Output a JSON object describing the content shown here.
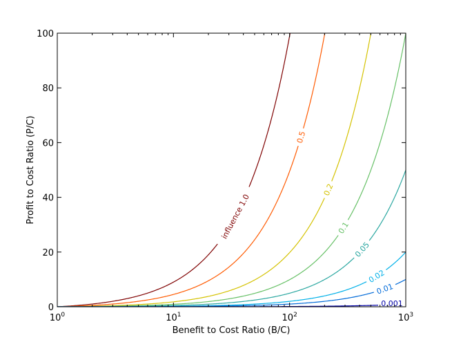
{
  "chart_data": {
    "type": "line",
    "title": "",
    "xlabel": "Benefit to Cost Ratio (B/C)",
    "ylabel": "Profit to Cost Ratio (P/C)",
    "xscale": "log",
    "xlim": [
      1,
      1000
    ],
    "ylim": [
      0,
      100
    ],
    "grid": false,
    "legend": "none (inline contour labels)",
    "x_ticks": [
      {
        "value": 1,
        "base": "10",
        "exp": "0"
      },
      {
        "value": 10,
        "base": "10",
        "exp": "1"
      },
      {
        "value": 100,
        "base": "10",
        "exp": "2"
      },
      {
        "value": 1000,
        "base": "10",
        "exp": "3"
      }
    ],
    "y_ticks": [
      "0",
      "20",
      "40",
      "60",
      "80",
      "100"
    ],
    "model": "P/C = influence * (B/C - 1)",
    "series": [
      {
        "name": "influence 1.0",
        "label": "influence 1.0",
        "influence": 1.0,
        "color": "#7f0000",
        "label_x": 34,
        "x": [
          1,
          10,
          30,
          50,
          100
        ],
        "values": [
          0,
          9,
          29,
          49,
          99
        ]
      },
      {
        "name": "0.5",
        "label": "0.5",
        "influence": 0.5,
        "color": "#ff5a00",
        "label_x": 125,
        "x": [
          1,
          10,
          50,
          100,
          200
        ],
        "values": [
          0,
          4.5,
          24.5,
          49.5,
          99.5
        ]
      },
      {
        "name": "0.2",
        "label": "0.2",
        "influence": 0.2,
        "color": "#d4c200",
        "label_x": 215,
        "x": [
          1,
          10,
          100,
          250,
          500
        ],
        "values": [
          0,
          1.8,
          19.8,
          49.8,
          99.8
        ]
      },
      {
        "name": "0.1",
        "label": "0.1",
        "influence": 0.1,
        "color": "#66c066",
        "label_x": 290,
        "x": [
          1,
          10,
          100,
          500,
          1000
        ],
        "values": [
          0,
          0.9,
          9.9,
          49.9,
          99.9
        ]
      },
      {
        "name": "0.05",
        "label": "0.05",
        "influence": 0.05,
        "color": "#2aa7a0",
        "label_x": 420,
        "x": [
          1,
          10,
          100,
          500,
          1000
        ],
        "values": [
          0,
          0.45,
          4.95,
          24.95,
          49.95
        ]
      },
      {
        "name": "0.02",
        "label": "0.02",
        "influence": 0.02,
        "color": "#00b0e8",
        "label_x": 560,
        "x": [
          1,
          10,
          100,
          500,
          1000
        ],
        "values": [
          0,
          0.18,
          1.98,
          9.98,
          19.98
        ]
      },
      {
        "name": "0.01",
        "label": "0.01",
        "influence": 0.01,
        "color": "#006ad8",
        "label_x": 660,
        "x": [
          1,
          10,
          100,
          500,
          1000
        ],
        "values": [
          0,
          0.09,
          0.99,
          4.99,
          9.99
        ]
      },
      {
        "name": "0.001",
        "label": "0.001",
        "influence": 0.001,
        "color": "#0000a8",
        "label_x": 820,
        "x": [
          1,
          10,
          100,
          500,
          1000
        ],
        "values": [
          0,
          0.009,
          0.099,
          0.499,
          0.999
        ]
      }
    ]
  }
}
